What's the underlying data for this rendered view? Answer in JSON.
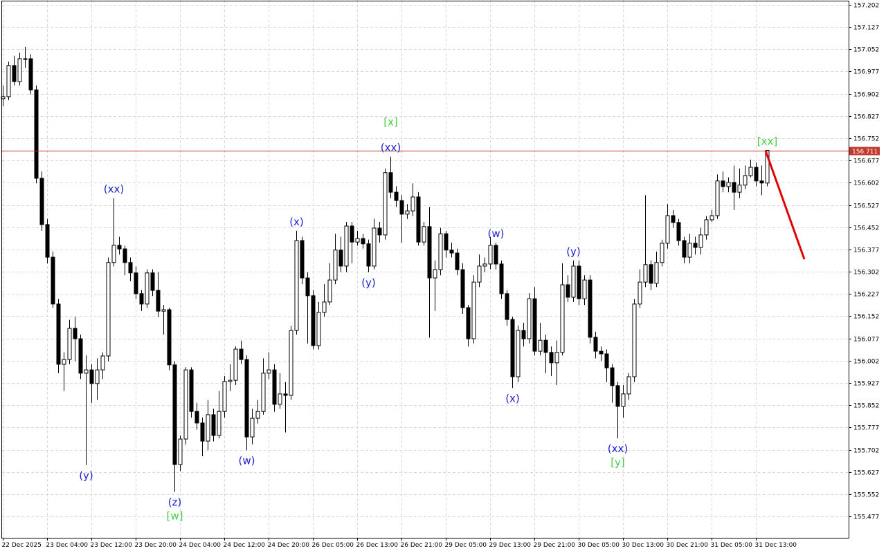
{
  "chart_data": {
    "type": "candlestick",
    "categories": [
      "22 Dec 2025",
      null,
      null,
      null,
      null,
      null,
      null,
      null,
      "23 Dec 04:00",
      null,
      null,
      null,
      null,
      null,
      null,
      null,
      "23 Dec 12:00",
      null,
      null,
      null,
      null,
      null,
      null,
      null,
      "23 Dec 20:00",
      null,
      null,
      null,
      null,
      null,
      null,
      null,
      "24 Dec 04:00",
      null,
      null,
      null,
      null,
      null,
      null,
      null,
      "24 Dec 12:00",
      null,
      null,
      null,
      null,
      null,
      null,
      null,
      "24 Dec 20:00",
      null,
      null,
      null,
      null,
      null,
      null,
      null,
      "26 Dec 05:00",
      null,
      null,
      null,
      null,
      null,
      null,
      null,
      "26 Dec 13:00",
      null,
      null,
      null,
      null,
      null,
      null,
      null,
      "26 Dec 21:00",
      null,
      null,
      null,
      null,
      null,
      null,
      null,
      "29 Dec 05:00",
      null,
      null,
      null,
      null,
      null,
      null,
      null,
      "29 Dec 13:00",
      null,
      null,
      null,
      null,
      null,
      null,
      null,
      "29 Dec 21:00",
      null,
      null,
      null,
      null,
      null,
      null,
      null,
      "30 Dec 05:00",
      null,
      null,
      null,
      null,
      null,
      null,
      null,
      "30 Dec 13:00",
      null,
      null,
      null,
      null,
      null,
      null,
      null,
      "30 Dec 21:00",
      null,
      null,
      null,
      null,
      null,
      null,
      null,
      "31 Dec 05:00",
      null,
      null,
      null,
      null,
      null,
      null,
      null,
      "31 Dec 13:00",
      null,
      null
    ],
    "open": [
      156.885,
      156.892,
      156.997,
      156.943,
      157.02,
      157.02,
      156.915,
      156.617,
      156.461,
      156.351,
      156.193,
      155.99,
      156.006,
      156.111,
      156.076,
      155.96,
      155.971,
      155.925,
      155.971,
      156.018,
      156.333,
      156.391,
      156.379,
      156.333,
      156.298,
      156.228,
      156.193,
      156.298,
      156.239,
      156.169,
      156.174,
      155.988,
      155.652,
      155.738,
      155.971,
      155.831,
      155.792,
      155.731,
      155.82,
      155.75,
      155.831,
      155.932,
      155.936,
      156.041,
      156.006,
      155.745,
      155.808,
      155.831,
      155.96,
      155.971,
      155.855,
      155.89,
      155.885,
      156.104,
      156.407,
      156.281,
      156.221,
      156.053,
      156.165,
      156.2,
      156.274,
      156.375,
      156.321,
      156.456,
      156.402,
      156.414,
      156.396,
      156.321,
      156.449,
      156.426,
      156.636,
      156.57,
      156.542,
      156.496,
      156.507,
      156.554,
      156.402,
      156.454,
      156.281,
      156.309,
      156.43,
      156.375,
      156.365,
      156.309,
      156.181,
      156.076,
      156.267,
      156.321,
      156.328,
      156.391,
      156.328,
      156.228,
      156.141,
      155.948,
      156.104,
      156.076,
      156.211,
      156.034,
      156.071,
      156.03,
      155.995,
      156.03,
      156.258,
      156.216,
      156.321,
      156.211,
      156.274,
      156.081,
      156.034,
      156.025,
      155.978,
      155.918,
      155.848,
      155.89,
      155.948,
      156.193,
      156.267,
      156.326,
      156.263,
      156.333,
      156.398,
      156.491,
      156.468,
      156.407,
      156.351,
      156.398,
      156.384,
      156.426,
      156.477,
      156.491,
      156.608,
      156.589,
      156.603,
      156.57,
      156.594,
      156.626,
      156.654,
      156.608,
      156.601
    ],
    "high": [
      156.93,
      157.01,
      157.03,
      157.04,
      157.06,
      157.035,
      156.93,
      156.64,
      156.48,
      156.37,
      156.21,
      156.03,
      156.14,
      156.15,
      156.09,
      156.02,
      155.99,
      156.01,
      156.03,
      156.35,
      156.55,
      156.42,
      156.39,
      156.35,
      156.32,
      156.24,
      156.31,
      156.31,
      156.3,
      156.19,
      156.18,
      156.0,
      155.75,
      155.98,
      155.98,
      155.86,
      155.81,
      155.87,
      155.84,
      155.9,
      155.95,
      155.99,
      156.05,
      156.07,
      156.02,
      155.84,
      155.87,
      156.01,
      156.03,
      155.99,
      155.96,
      155.93,
      156.12,
      156.44,
      156.42,
      156.3,
      156.24,
      156.2,
      156.26,
      156.33,
      156.43,
      156.42,
      156.47,
      156.47,
      156.44,
      156.43,
      156.41,
      156.48,
      156.47,
      156.65,
      156.69,
      156.59,
      156.56,
      156.53,
      156.6,
      156.57,
      156.47,
      156.52,
      156.34,
      156.45,
      156.44,
      156.4,
      156.38,
      156.33,
      156.19,
      156.29,
      156.36,
      156.35,
      156.42,
      156.4,
      156.34,
      156.24,
      156.15,
      156.12,
      156.13,
      156.23,
      156.25,
      156.13,
      156.09,
      156.05,
      156.07,
      156.33,
      156.29,
      156.34,
      156.34,
      156.29,
      156.29,
      156.1,
      156.05,
      156.04,
      155.99,
      155.93,
      155.92,
      155.96,
      156.21,
      156.31,
      156.56,
      156.34,
      156.37,
      156.41,
      156.53,
      156.51,
      156.48,
      156.42,
      156.43,
      156.42,
      156.45,
      156.49,
      156.51,
      156.63,
      156.64,
      156.62,
      156.66,
      156.65,
      156.66,
      156.68,
      156.67,
      156.66,
      156.711
    ],
    "low": [
      156.86,
      156.88,
      156.93,
      156.93,
      156.99,
      156.9,
      156.6,
      156.44,
      156.33,
      156.18,
      155.96,
      155.9,
      155.99,
      156.0,
      155.94,
      155.65,
      155.86,
      155.87,
      155.94,
      156.0,
      156.32,
      156.36,
      156.29,
      156.27,
      156.21,
      156.17,
      156.18,
      156.22,
      156.15,
      156.09,
      155.97,
      155.56,
      155.63,
      155.72,
      155.81,
      155.77,
      155.68,
      155.7,
      155.73,
      155.74,
      155.81,
      155.9,
      155.92,
      155.99,
      155.7,
      155.72,
      155.79,
      155.82,
      155.94,
      155.83,
      155.84,
      155.76,
      155.87,
      156.09,
      156.26,
      156.06,
      156.04,
      156.04,
      156.15,
      156.19,
      156.26,
      156.3,
      156.3,
      156.33,
      156.39,
      156.38,
      156.3,
      156.31,
      156.4,
      156.41,
      156.55,
      156.52,
      156.4,
      156.48,
      156.49,
      156.39,
      156.39,
      156.08,
      156.17,
      156.29,
      156.35,
      156.35,
      156.29,
      156.16,
      156.05,
      156.06,
      156.25,
      156.3,
      156.31,
      156.31,
      156.21,
      156.12,
      155.91,
      155.93,
      156.05,
      156.06,
      156.02,
      156.02,
      155.96,
      155.95,
      155.92,
      156.02,
      156.2,
      156.2,
      156.19,
      156.19,
      156.06,
      156.01,
      156.0,
      155.93,
      155.86,
      155.74,
      155.81,
      155.87,
      155.93,
      156.18,
      156.25,
      156.24,
      156.25,
      156.32,
      156.38,
      156.45,
      156.39,
      156.33,
      156.33,
      156.36,
      156.36,
      156.41,
      156.47,
      156.48,
      156.57,
      156.57,
      156.51,
      156.55,
      156.58,
      156.62,
      156.59,
      156.56,
      156.59
    ],
    "close": [
      156.892,
      156.997,
      156.943,
      157.02,
      157.02,
      156.915,
      156.617,
      156.461,
      156.351,
      156.193,
      155.99,
      156.006,
      156.111,
      156.076,
      155.96,
      155.971,
      155.925,
      155.971,
      156.018,
      156.333,
      156.391,
      156.379,
      156.333,
      156.298,
      156.228,
      156.193,
      156.298,
      156.239,
      156.169,
      156.174,
      155.988,
      155.652,
      155.738,
      155.971,
      155.831,
      155.792,
      155.731,
      155.82,
      155.75,
      155.831,
      155.932,
      155.936,
      156.041,
      156.006,
      155.745,
      155.808,
      155.831,
      155.96,
      155.971,
      155.855,
      155.89,
      155.885,
      156.104,
      156.407,
      156.281,
      156.221,
      156.053,
      156.165,
      156.2,
      156.274,
      156.375,
      156.321,
      156.456,
      156.402,
      156.414,
      156.396,
      156.321,
      156.449,
      156.426,
      156.636,
      156.57,
      156.542,
      156.496,
      156.507,
      156.554,
      156.402,
      156.454,
      156.281,
      156.309,
      156.43,
      156.375,
      156.365,
      156.309,
      156.181,
      156.076,
      156.267,
      156.321,
      156.328,
      156.391,
      156.328,
      156.228,
      156.141,
      155.948,
      156.104,
      156.076,
      156.211,
      156.034,
      156.071,
      156.03,
      155.995,
      156.03,
      156.258,
      156.216,
      156.321,
      156.211,
      156.274,
      156.081,
      156.034,
      156.025,
      155.978,
      155.918,
      155.848,
      155.89,
      155.948,
      156.193,
      156.267,
      156.326,
      156.263,
      156.333,
      156.398,
      156.491,
      156.468,
      156.407,
      156.351,
      156.398,
      156.384,
      156.426,
      156.477,
      156.491,
      156.608,
      156.589,
      156.603,
      156.57,
      156.594,
      156.626,
      156.654,
      156.608,
      156.601,
      156.711
    ],
    "up_color": "#ffffff",
    "down_color": "#000000",
    "price_line_color": "#c0392b",
    "ylim": [
      155.405,
      157.218
    ],
    "yticks": [
      157.202,
      157.127,
      157.052,
      156.977,
      156.902,
      156.827,
      156.752,
      156.677,
      156.602,
      156.527,
      156.452,
      156.377,
      156.302,
      156.227,
      156.152,
      156.077,
      156.002,
      155.927,
      155.852,
      155.777,
      155.702,
      155.627,
      155.552,
      155.477
    ],
    "grid": true,
    "annotations": [
      {
        "text": "(y)",
        "candle": 15,
        "side": "below",
        "color": "#1f1fd1"
      },
      {
        "text": "(xx)",
        "candle": 20,
        "side": "above",
        "color": "#1f1fd1"
      },
      {
        "text": "(z)",
        "candle": 31,
        "side": "below",
        "color": "#1f1fd1"
      },
      {
        "text": "[w]",
        "candle": 31,
        "side": "below",
        "color": "#44cc44"
      },
      {
        "text": "(w)",
        "candle": 44,
        "side": "below",
        "color": "#1f1fd1"
      },
      {
        "text": "(x)",
        "candle": 53,
        "side": "above",
        "color": "#1f1fd1"
      },
      {
        "text": "(y)",
        "candle": 66,
        "side": "below",
        "color": "#1f1fd1"
      },
      {
        "text": "(xx)",
        "candle": 70,
        "side": "above",
        "color": "#1f1fd1"
      },
      {
        "text": "[x]",
        "candle": 70,
        "side": "above",
        "color": "#44cc44"
      },
      {
        "text": "(w)",
        "candle": 89,
        "side": "above",
        "color": "#1f1fd1"
      },
      {
        "text": "(x)",
        "candle": 92,
        "side": "below",
        "color": "#1f1fd1"
      },
      {
        "text": "(y)",
        "candle": 103,
        "side": "above",
        "color": "#1f1fd1"
      },
      {
        "text": "(xx)",
        "candle": 111,
        "side": "below",
        "color": "#1f1fd1"
      },
      {
        "text": "[y]",
        "candle": 111,
        "side": "below",
        "color": "#44cc44"
      },
      {
        "text": "[xx]",
        "candle": 138,
        "side": "above",
        "color": "#44cc44"
      }
    ]
  }
}
